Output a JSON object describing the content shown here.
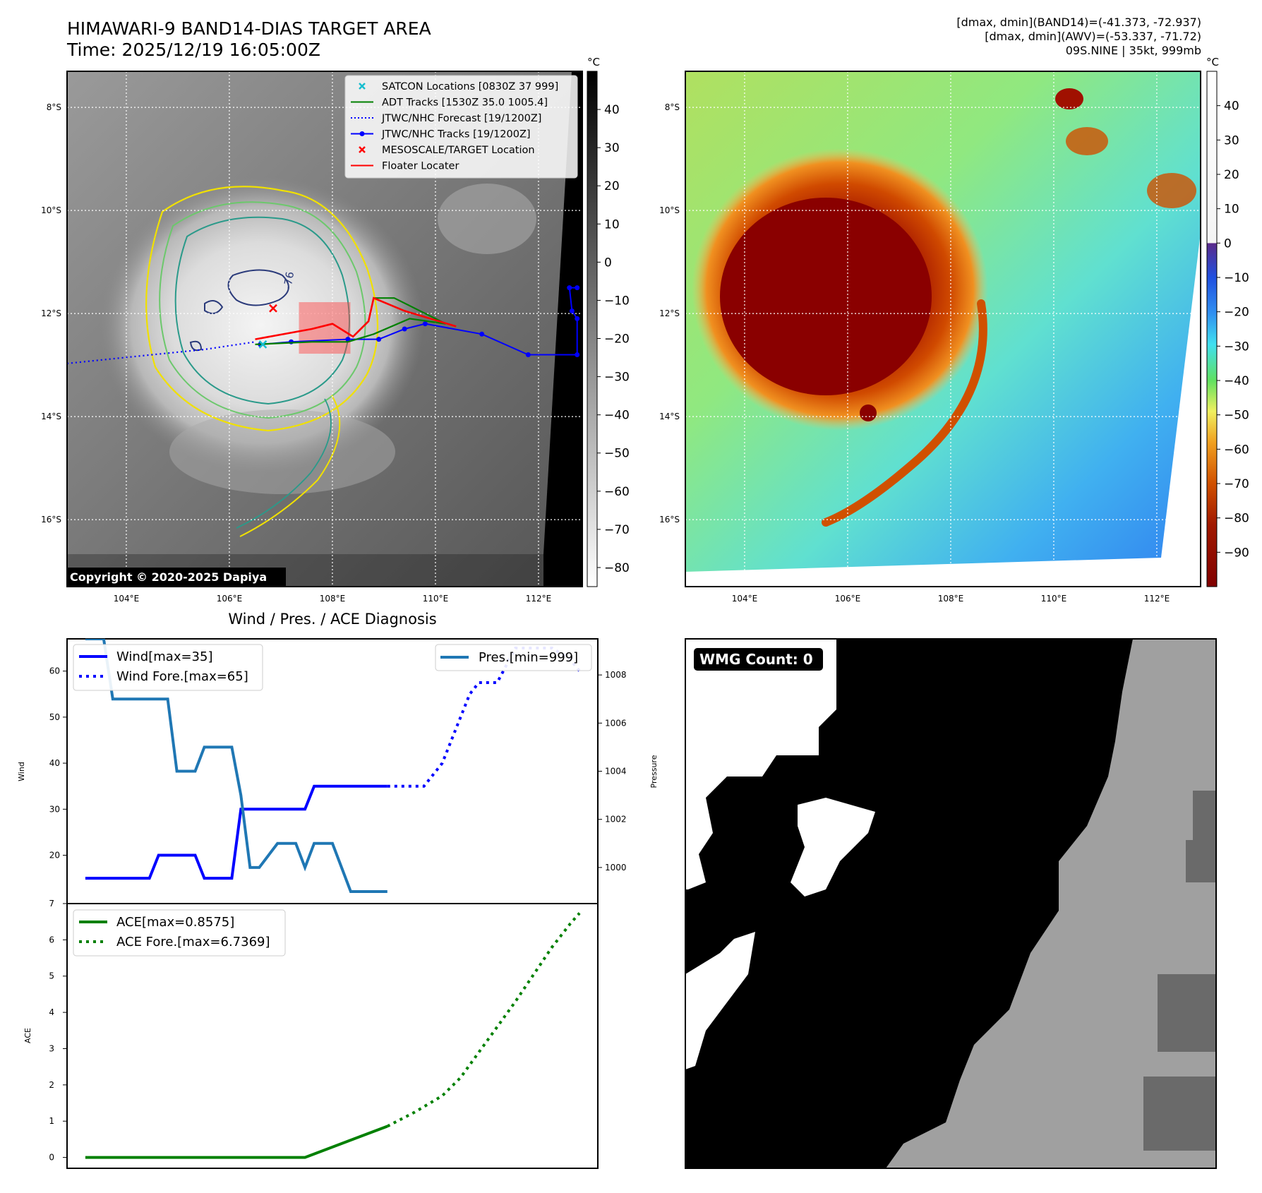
{
  "header": {
    "title_line1": "HIMAWARI-9 BAND14-DIAS TARGET AREA",
    "title_line2": "Time: 2025/12/19 16:05:00Z",
    "info_line1": "[dmax, dmin](BAND14)=(-41.373, -72.937)",
    "info_line2": "[dmax, dmin](AWV)=(-53.337, -71.72)",
    "info_line3": "09S.NINE | 35kt, 999mb"
  },
  "colors": {
    "wind": "#0000ff",
    "pressure": "#1f77b4",
    "ace": "#008000",
    "track_red": "#ff0000",
    "adt_green": "#008000",
    "satcon_cyan": "#17becf",
    "contour_yellow": "#f0e000",
    "contour_green": "#6cc86c",
    "contour_teal": "#2a9a8a",
    "contour_navy": "#2a3a7a"
  },
  "ir_panel": {
    "lon_ticks": [
      "104°E",
      "106°E",
      "108°E",
      "110°E",
      "112°E"
    ],
    "lat_ticks": [
      "8°S",
      "10°S",
      "12°S",
      "14°S",
      "16°S"
    ],
    "lon_values": [
      104,
      106,
      108,
      110,
      112
    ],
    "lat_values": [
      -8,
      -10,
      -12,
      -14,
      -16
    ],
    "lon_range": [
      102.85,
      112.85
    ],
    "lat_range": [
      -7.3,
      -17.3
    ],
    "copyright": "Copyright © 2020-2025 Dapiya",
    "colorbar_unit": "°C",
    "colorbar_ticks": [
      "40",
      "30",
      "20",
      "10",
      "0",
      "−10",
      "−20",
      "−30",
      "−40",
      "−50",
      "−60",
      "−70",
      "−80"
    ],
    "colorbar_values": [
      40,
      30,
      20,
      10,
      0,
      -10,
      -20,
      -30,
      -40,
      -50,
      -60,
      -70,
      -80
    ],
    "colorbar_range": [
      50,
      -85
    ],
    "legend": [
      {
        "label": "SATCON Locations [0830Z 37 999]",
        "style": "x-cyan"
      },
      {
        "label": "ADT Tracks [1530Z 35.0 1005.4]",
        "style": "line-green"
      },
      {
        "label": "JTWC/NHC Forecast [19/1200Z]",
        "style": "dotted-blue"
      },
      {
        "label": "JTWC/NHC Tracks [19/1200Z]",
        "style": "line-dot-blue"
      },
      {
        "label": "MESOSCALE/TARGET Location",
        "style": "x-red"
      },
      {
        "label": "Floater Locater",
        "style": "line-red"
      }
    ],
    "contour_label": "-76",
    "jtwc_forecast": [
      [
        102.85,
        -12.97
      ],
      [
        104.5,
        -12.8
      ],
      [
        105.5,
        -12.7
      ],
      [
        106.5,
        -12.55
      ]
    ],
    "jtwc_tracks": [
      [
        106.6,
        -12.6
      ],
      [
        107.2,
        -12.55
      ],
      [
        108.3,
        -12.5
      ],
      [
        108.9,
        -12.5
      ],
      [
        109.4,
        -12.3
      ],
      [
        109.8,
        -12.2
      ],
      [
        110.9,
        -12.4
      ],
      [
        111.8,
        -12.8
      ],
      [
        112.75,
        -12.8
      ],
      [
        112.75,
        -12.1
      ],
      [
        112.65,
        -11.95
      ],
      [
        112.6,
        -11.5
      ],
      [
        112.75,
        -11.5
      ]
    ],
    "adt_tracks": [
      [
        106.5,
        -12.6
      ],
      [
        107.6,
        -12.55
      ],
      [
        108.3,
        -12.55
      ],
      [
        108.8,
        -12.4
      ],
      [
        109.5,
        -12.1
      ],
      [
        110.2,
        -12.2
      ],
      [
        109.2,
        -11.7
      ],
      [
        108.8,
        -11.7
      ]
    ],
    "floater_track": [
      [
        106.5,
        -12.5
      ],
      [
        107.6,
        -12.3
      ],
      [
        108.0,
        -12.2
      ],
      [
        108.4,
        -12.45
      ],
      [
        108.7,
        -12.15
      ],
      [
        108.8,
        -11.7
      ],
      [
        109.4,
        -11.95
      ],
      [
        110.4,
        -12.25
      ]
    ],
    "target_box": {
      "lon_min": 107.35,
      "lon_max": 108.35,
      "lat_min": -12.78,
      "lat_max": -11.78
    },
    "mesoscale_x": [
      106.85,
      -11.9
    ],
    "satcon_x": [
      106.65,
      -12.6
    ]
  },
  "awv_panel": {
    "lon_ticks": [
      "104°E",
      "106°E",
      "108°E",
      "110°E",
      "112°E"
    ],
    "lat_ticks": [
      "8°S",
      "10°S",
      "12°S",
      "14°S",
      "16°S"
    ],
    "lon_values": [
      104,
      106,
      108,
      110,
      112
    ],
    "lat_values": [
      -8,
      -10,
      -12,
      -14,
      -16
    ],
    "colorbar_unit": "°C",
    "colorbar_ticks": [
      "40",
      "30",
      "20",
      "10",
      "0",
      "−10",
      "−20",
      "−30",
      "−40",
      "−50",
      "−60",
      "−70",
      "−80",
      "−90"
    ],
    "colorbar_values": [
      40,
      30,
      20,
      10,
      0,
      -10,
      -20,
      -30,
      -40,
      -50,
      -60,
      -70,
      -80,
      -90
    ],
    "colorbar_range": [
      50,
      -100
    ]
  },
  "diagnosis_panel": {
    "title": "Wind / Pres. / ACE Diagnosis",
    "wind_ylabel": "Wind",
    "pres_ylabel": "Pressure",
    "ace_ylabel": "ACE"
  },
  "wmg_panel": {
    "badge": "WMG Count: 0"
  },
  "chart_data": [
    {
      "type": "line",
      "title": "Wind / Pres. / ACE Diagnosis",
      "ylabel": "Wind",
      "y2label": "Pressure",
      "x": [
        0,
        1,
        2,
        3,
        4,
        5,
        6,
        7,
        8,
        9,
        10,
        11,
        12,
        13,
        14,
        15,
        16,
        17,
        18,
        19,
        20,
        21,
        22,
        23,
        24,
        25,
        26,
        27,
        28,
        29,
        30,
        31,
        32,
        33,
        34,
        35,
        36,
        37,
        38,
        39,
        40,
        41,
        42,
        43,
        44,
        45,
        46,
        47,
        48,
        49,
        50,
        51,
        52,
        53,
        54,
        55
      ],
      "xlim": [
        -2,
        56
      ],
      "ylim": [
        9.5,
        67
      ],
      "y2lim": [
        998.5,
        1009.5
      ],
      "wind_yticks": [
        20,
        30,
        40,
        50,
        60
      ],
      "pres_yticks": [
        1000,
        1002,
        1004,
        1006,
        1008
      ],
      "series": [
        {
          "name": "Wind[max=35]",
          "axis": "left",
          "style": "solid",
          "points": [
            [
              0,
              15
            ],
            [
              7,
              15
            ],
            [
              8,
              20
            ],
            [
              12,
              20
            ],
            [
              13,
              15
            ],
            [
              16,
              15
            ],
            [
              17,
              30
            ],
            [
              24,
              30
            ],
            [
              25,
              35
            ],
            [
              33,
              35
            ]
          ]
        },
        {
          "name": "Wind Fore.[max=65]",
          "axis": "left",
          "style": "dotted",
          "points": [
            [
              33,
              35
            ],
            [
              37,
              35
            ],
            [
              39,
              40
            ],
            [
              42,
              55
            ],
            [
              43,
              57.5
            ],
            [
              45,
              57.5
            ],
            [
              47,
              65
            ],
            [
              51,
              65
            ],
            [
              53,
              62.5
            ],
            [
              54,
              60
            ]
          ]
        },
        {
          "name": "Pres.[min=999]",
          "axis": "right",
          "style": "solid",
          "points": [
            [
              0,
              1009.5
            ],
            [
              2,
              1009.5
            ],
            [
              3,
              1007
            ],
            [
              9,
              1007
            ],
            [
              10,
              1004
            ],
            [
              12,
              1004
            ],
            [
              13,
              1005
            ],
            [
              16,
              1005
            ],
            [
              17,
              1003
            ],
            [
              18,
              1000
            ],
            [
              19,
              1000
            ],
            [
              21,
              1001
            ],
            [
              23,
              1001
            ],
            [
              24,
              1000
            ],
            [
              25,
              1001
            ],
            [
              27,
              1001
            ],
            [
              29,
              999
            ],
            [
              33,
              999
            ]
          ]
        }
      ]
    },
    {
      "type": "line",
      "ylabel": "ACE",
      "x": [
        0,
        1,
        2,
        3,
        4,
        5,
        6,
        7,
        8,
        9,
        10,
        11,
        12,
        13,
        14,
        15,
        16,
        17,
        18,
        19,
        20,
        21,
        22,
        23,
        24,
        25,
        26,
        27,
        28,
        29,
        30,
        31,
        32,
        33,
        34,
        35,
        36,
        37,
        38,
        39,
        40,
        41,
        42,
        43,
        44,
        45,
        46,
        47,
        48,
        49,
        50,
        51,
        52,
        53,
        54,
        55
      ],
      "xlim": [
        -2,
        56
      ],
      "ylim": [
        -0.3,
        7
      ],
      "yticks": [
        0,
        1,
        2,
        3,
        4,
        5,
        6,
        7
      ],
      "series": [
        {
          "name": "ACE[max=0.8575]",
          "style": "solid",
          "points": [
            [
              0,
              0
            ],
            [
              24,
              0
            ],
            [
              33,
              0.8575
            ]
          ]
        },
        {
          "name": "ACE Fore.[max=6.7369]",
          "style": "dotted",
          "points": [
            [
              33,
              0.8575
            ],
            [
              36,
              1.25
            ],
            [
              39,
              1.7
            ],
            [
              41,
              2.2
            ],
            [
              43,
              2.9
            ],
            [
              45,
              3.6
            ],
            [
              47,
              4.3
            ],
            [
              49,
              5.05
            ],
            [
              51,
              5.8
            ],
            [
              53,
              6.45
            ],
            [
              54,
              6.7369
            ]
          ]
        }
      ]
    }
  ]
}
